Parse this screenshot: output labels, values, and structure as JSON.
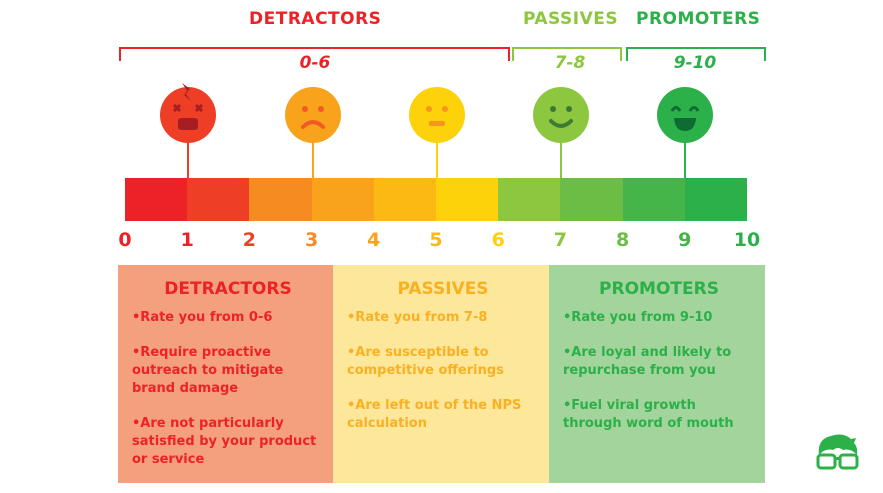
{
  "header": {
    "detractors": "DETRACTORS",
    "passives": "PASSIVES",
    "promoters": "PROMOTERS",
    "detractors_range": "0-6",
    "passives_range": "7-8",
    "promoters_range": "9-10"
  },
  "scale": {
    "numbers": [
      "0",
      "1",
      "2",
      "3",
      "4",
      "5",
      "6",
      "7",
      "8",
      "9",
      "10"
    ],
    "segment_colors": [
      "#ec2227",
      "#ef3e26",
      "#f68b21",
      "#f9a21b",
      "#fdb913",
      "#fdd20b",
      "#8dc63f",
      "#6bbd45",
      "#46b549",
      "#2bb04a"
    ],
    "number_colors": [
      "#ec2227",
      "#ec2227",
      "#ef3e26",
      "#f68b21",
      "#f9a21b",
      "#fdb913",
      "#fdd20b",
      "#8dc63f",
      "#6bbd45",
      "#46b549",
      "#2bb04a"
    ]
  },
  "faces": [
    {
      "icon": "angry-face-icon",
      "color": "#ef3e26"
    },
    {
      "icon": "sad-face-icon",
      "color": "#f9a21b"
    },
    {
      "icon": "neutral-face-icon",
      "color": "#fdd20b"
    },
    {
      "icon": "smile-face-icon",
      "color": "#8dc63f"
    },
    {
      "icon": "happy-face-icon",
      "color": "#2bb04a"
    }
  ],
  "cards": [
    {
      "title": "DETRACTORS",
      "bg": "#f5a07c",
      "color": "#ec2227",
      "items": [
        "•Rate you from 0-6",
        "•Require proactive outreach to mitigate brand damage",
        "•Are not particularly satisfied by your product or service"
      ]
    },
    {
      "title": "PASSIVES",
      "bg": "#fde79a",
      "color": "#f9b122",
      "items": [
        "•Rate you from 7-8",
        "•Are susceptible to competitive offerings",
        "•Are left out of the NPS calculation"
      ]
    },
    {
      "title": "PROMOTERS",
      "bg": "#a3d49b",
      "color": "#2bb04a",
      "items": [
        "•Rate you from 9-10",
        "•Are loyal and likely to repurchase from you",
        "•Fuel viral growth through word of mouth"
      ]
    }
  ],
  "logo": {
    "icon": "nerd-glasses-logo-icon",
    "color": "#2bb04a"
  }
}
